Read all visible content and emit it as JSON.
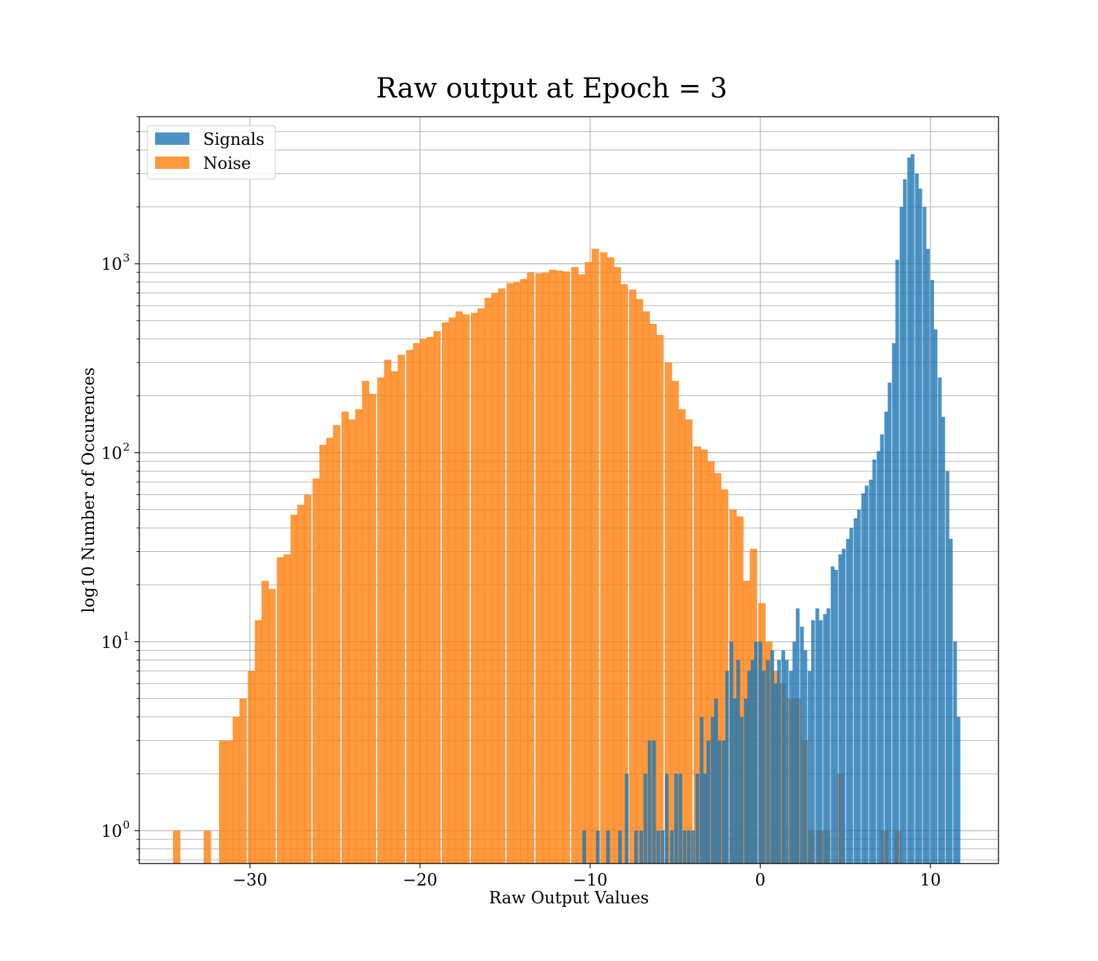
{
  "chart_data": {
    "type": "histogram",
    "title": "Raw output at Epoch = 3",
    "xlabel": "Raw Output Values",
    "ylabel": "log10 Number of Occurences",
    "x_scale": "linear",
    "y_scale": "log",
    "xlim": [
      -36.5,
      14.0
    ],
    "ylim": [
      0.67,
      6000
    ],
    "x_ticks": [
      -30,
      -20,
      -10,
      0,
      10
    ],
    "x_tick_labels": [
      "−30",
      "−20",
      "−10",
      "0",
      "10"
    ],
    "y_ticks": [
      1,
      10,
      100,
      1000
    ],
    "y_tick_labels": [
      "10",
      "10",
      "10",
      "10"
    ],
    "y_tick_exponents": [
      "0",
      "1",
      "2",
      "3"
    ],
    "grid": true,
    "grid_which": "both",
    "legend_position": "top-left",
    "series": [
      {
        "name": "Noise",
        "color": "#ff7f0e",
        "alpha": 0.8,
        "bin_width": 0.43,
        "bins": [
          [
            -34.3,
            1
          ],
          [
            -32.5,
            1
          ],
          [
            -31.6,
            3
          ],
          [
            -31.2,
            3
          ],
          [
            -30.8,
            4
          ],
          [
            -30.4,
            5
          ],
          [
            -29.9,
            7
          ],
          [
            -29.5,
            13
          ],
          [
            -29.1,
            21
          ],
          [
            -28.7,
            19
          ],
          [
            -28.2,
            28
          ],
          [
            -27.8,
            29
          ],
          [
            -27.4,
            47
          ],
          [
            -27.0,
            53
          ],
          [
            -26.6,
            60
          ],
          [
            -26.1,
            73
          ],
          [
            -25.7,
            110
          ],
          [
            -25.3,
            120
          ],
          [
            -24.9,
            140
          ],
          [
            -24.4,
            165
          ],
          [
            -24.0,
            150
          ],
          [
            -23.6,
            170
          ],
          [
            -23.2,
            240
          ],
          [
            -22.8,
            205
          ],
          [
            -22.3,
            250
          ],
          [
            -21.9,
            310
          ],
          [
            -21.5,
            270
          ],
          [
            -21.1,
            330
          ],
          [
            -20.6,
            350
          ],
          [
            -20.2,
            380
          ],
          [
            -19.8,
            400
          ],
          [
            -19.4,
            410
          ],
          [
            -19.0,
            440
          ],
          [
            -18.5,
            490
          ],
          [
            -18.1,
            520
          ],
          [
            -17.7,
            560
          ],
          [
            -17.3,
            540
          ],
          [
            -16.8,
            550
          ],
          [
            -16.4,
            580
          ],
          [
            -16.0,
            660
          ],
          [
            -15.6,
            700
          ],
          [
            -15.2,
            740
          ],
          [
            -14.7,
            790
          ],
          [
            -14.3,
            800
          ],
          [
            -13.9,
            830
          ],
          [
            -13.5,
            900
          ],
          [
            -13.0,
            890
          ],
          [
            -12.6,
            895
          ],
          [
            -12.2,
            930
          ],
          [
            -11.8,
            920
          ],
          [
            -11.4,
            910
          ],
          [
            -10.9,
            960
          ],
          [
            -10.5,
            880
          ],
          [
            -10.1,
            1020
          ],
          [
            -9.7,
            1200
          ],
          [
            -9.2,
            1150
          ],
          [
            -8.8,
            1080
          ],
          [
            -8.4,
            960
          ],
          [
            -8.0,
            780
          ],
          [
            -7.5,
            730
          ],
          [
            -7.1,
            650
          ],
          [
            -6.7,
            560
          ],
          [
            -6.3,
            480
          ],
          [
            -5.9,
            420
          ],
          [
            -5.4,
            300
          ],
          [
            -5.0,
            240
          ],
          [
            -4.6,
            170
          ],
          [
            -4.2,
            150
          ],
          [
            -3.7,
            108
          ],
          [
            -3.3,
            104
          ],
          [
            -2.9,
            90
          ],
          [
            -2.5,
            78
          ],
          [
            -2.1,
            64
          ],
          [
            -1.6,
            50
          ],
          [
            -1.2,
            46
          ],
          [
            -0.8,
            21
          ],
          [
            -0.4,
            31
          ],
          [
            0.1,
            16
          ],
          [
            0.5,
            10
          ],
          [
            0.9,
            7
          ],
          [
            1.3,
            6
          ],
          [
            1.8,
            5
          ],
          [
            2.2,
            5
          ],
          [
            2.6,
            3
          ],
          [
            3.0,
            1
          ],
          [
            3.5,
            1
          ],
          [
            3.9,
            1
          ],
          [
            4.7,
            2
          ],
          [
            7.3,
            1
          ],
          [
            8.1,
            1
          ]
        ]
      },
      {
        "name": "Signals",
        "color": "#1f77b4",
        "alpha": 0.8,
        "bin_width": 0.22,
        "bins": [
          [
            -10.35,
            1
          ],
          [
            -9.55,
            1
          ],
          [
            -8.95,
            1
          ],
          [
            -8.25,
            1
          ],
          [
            -7.85,
            2
          ],
          [
            -7.3,
            1
          ],
          [
            -7.0,
            1
          ],
          [
            -6.75,
            2
          ],
          [
            -6.5,
            3
          ],
          [
            -6.25,
            3
          ],
          [
            -6.0,
            1
          ],
          [
            -5.75,
            1
          ],
          [
            -5.5,
            2
          ],
          [
            -5.2,
            1
          ],
          [
            -4.95,
            2
          ],
          [
            -4.7,
            2
          ],
          [
            -4.45,
            1
          ],
          [
            -4.2,
            1
          ],
          [
            -3.95,
            1
          ],
          [
            -3.7,
            2
          ],
          [
            -3.45,
            4
          ],
          [
            -3.25,
            2
          ],
          [
            -3.05,
            3
          ],
          [
            -2.8,
            4
          ],
          [
            -2.6,
            5
          ],
          [
            -2.4,
            3
          ],
          [
            -2.15,
            3
          ],
          [
            -1.95,
            7
          ],
          [
            -1.7,
            10
          ],
          [
            -1.5,
            5
          ],
          [
            -1.3,
            8
          ],
          [
            -1.1,
            4
          ],
          [
            -0.85,
            5
          ],
          [
            -0.65,
            7
          ],
          [
            -0.45,
            8
          ],
          [
            -0.25,
            10
          ],
          [
            0.0,
            10
          ],
          [
            0.2,
            7
          ],
          [
            0.45,
            8
          ],
          [
            0.7,
            9
          ],
          [
            0.9,
            6
          ],
          [
            1.1,
            8
          ],
          [
            1.35,
            9
          ],
          [
            1.55,
            8
          ],
          [
            1.8,
            7
          ],
          [
            2.0,
            10
          ],
          [
            2.2,
            15
          ],
          [
            2.45,
            12
          ],
          [
            2.65,
            9
          ],
          [
            2.9,
            7
          ],
          [
            3.1,
            13
          ],
          [
            3.35,
            15
          ],
          [
            3.55,
            13
          ],
          [
            3.8,
            14
          ],
          [
            4.0,
            15
          ],
          [
            4.25,
            25
          ],
          [
            4.45,
            24
          ],
          [
            4.7,
            29
          ],
          [
            4.9,
            31
          ],
          [
            5.15,
            35
          ],
          [
            5.35,
            40
          ],
          [
            5.6,
            45
          ],
          [
            5.8,
            50
          ],
          [
            6.05,
            61
          ],
          [
            6.25,
            67
          ],
          [
            6.5,
            72
          ],
          [
            6.7,
            92
          ],
          [
            6.95,
            102
          ],
          [
            7.15,
            125
          ],
          [
            7.4,
            165
          ],
          [
            7.6,
            235
          ],
          [
            7.85,
            380
          ],
          [
            8.05,
            1050
          ],
          [
            8.3,
            2000
          ],
          [
            8.5,
            2800
          ],
          [
            8.75,
            3650
          ],
          [
            8.95,
            3800
          ],
          [
            9.2,
            3000
          ],
          [
            9.4,
            2500
          ],
          [
            9.65,
            2000
          ],
          [
            9.85,
            1200
          ],
          [
            10.1,
            820
          ],
          [
            10.3,
            450
          ],
          [
            10.55,
            250
          ],
          [
            10.75,
            155
          ],
          [
            11.0,
            80
          ],
          [
            11.2,
            35
          ],
          [
            11.45,
            10
          ],
          [
            11.65,
            4
          ]
        ]
      }
    ]
  }
}
